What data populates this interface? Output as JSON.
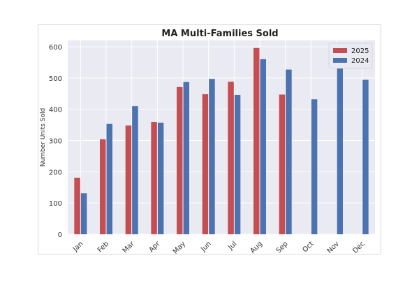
{
  "chart_data": {
    "type": "bar",
    "title": "MA Multi-Families Sold",
    "xlabel": "",
    "ylabel": "Number Units Sold",
    "categories": [
      "Jan",
      "Feb",
      "Mar",
      "Apr",
      "May",
      "Jun",
      "Jul",
      "Aug",
      "Sep",
      "Oct",
      "Nov",
      "Dec"
    ],
    "series": [
      {
        "name": "2025",
        "color": "#c44e52",
        "values": [
          181,
          304,
          348,
          359,
          471,
          448,
          488,
          596,
          447,
          null,
          null,
          null
        ]
      },
      {
        "name": "2024",
        "color": "#4c72b0",
        "values": [
          131,
          353,
          410,
          357,
          487,
          497,
          446,
          560,
          527,
          432,
          535,
          494
        ]
      }
    ],
    "ylim": [
      0,
      620
    ],
    "yticks": [
      0,
      100,
      200,
      300,
      400,
      500,
      600
    ],
    "grid": true,
    "legend_position": "top-right",
    "background": "#eaeaf2"
  }
}
